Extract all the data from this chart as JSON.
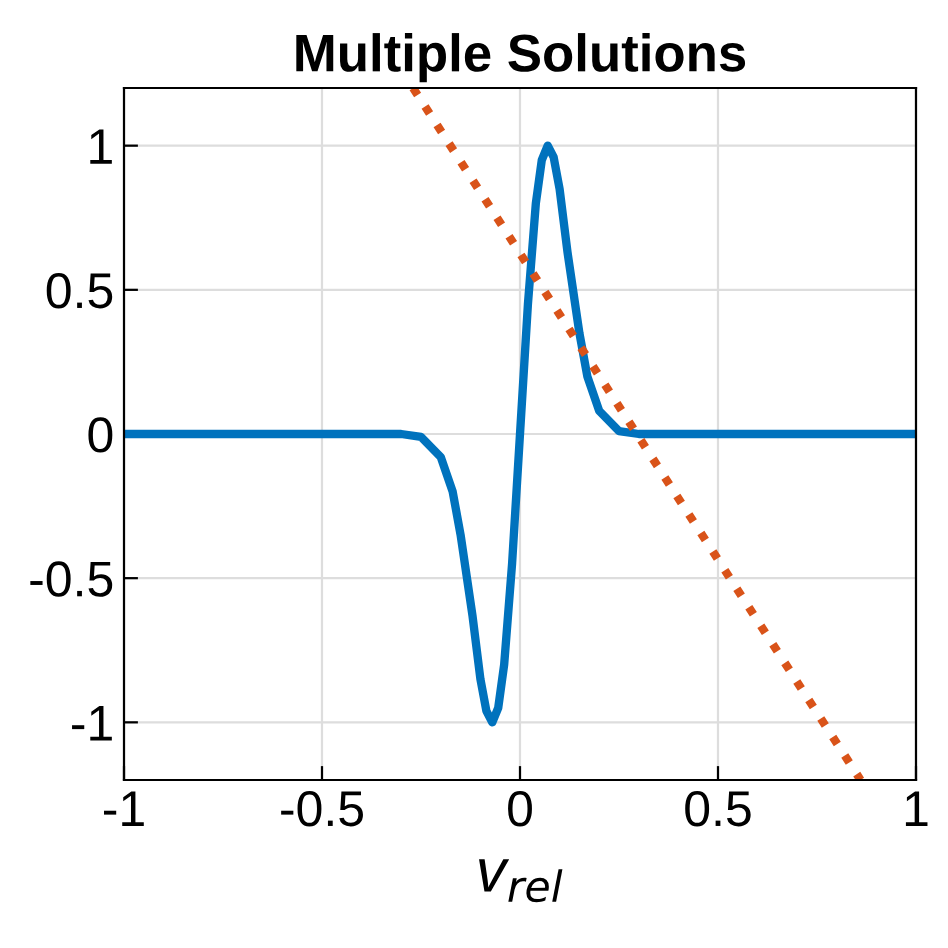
{
  "chart_data": {
    "type": "line",
    "title": "Multiple Solutions",
    "xlabel": "v$_{rel}$",
    "series": [
      {
        "color": "#0072bd",
        "line_style": "solid",
        "x": [
          -1,
          -0.3,
          -0.25,
          -0.2,
          -0.17,
          -0.15,
          -0.12,
          -0.1,
          -0.085,
          -0.07,
          -0.055,
          -0.04,
          -0.02,
          0,
          0.02,
          0.04,
          0.055,
          0.07,
          0.085,
          0.1,
          0.12,
          0.15,
          0.17,
          0.2,
          0.25,
          0.3,
          1
        ],
        "values": [
          0,
          0,
          -0.01,
          -0.08,
          -0.2,
          -0.35,
          -0.63,
          -0.85,
          -0.96,
          -1,
          -0.95,
          -0.8,
          -0.45,
          0,
          0.45,
          0.8,
          0.95,
          1,
          0.96,
          0.85,
          0.63,
          0.35,
          0.2,
          0.08,
          0.01,
          0,
          0
        ]
      },
      {
        "color": "#d95319",
        "line_style": "dotted",
        "x": [
          -0.27,
          0.86
        ],
        "values": [
          1.2,
          -1.2
        ]
      }
    ],
    "xlim": [
      -1,
      1
    ],
    "xticks": [
      -1,
      -0.5,
      0,
      0.5,
      1
    ],
    "ylim": [
      -1.2,
      1.2
    ],
    "yticks": [
      -1,
      -0.5,
      0,
      0.5,
      1
    ],
    "grid": true,
    "legend": false
  }
}
